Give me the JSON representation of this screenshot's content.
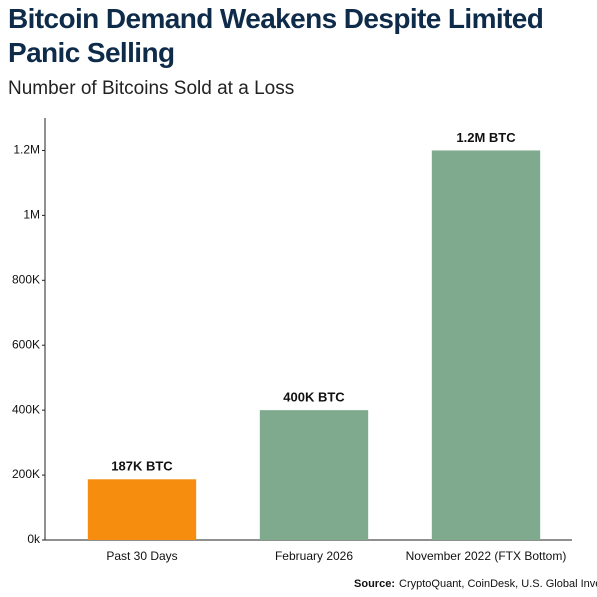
{
  "chart_data": {
    "type": "bar",
    "title": "Bitcoin Demand Weakens Despite Limited Panic Selling",
    "subtitle": "Number of Bitcoins Sold at a Loss",
    "categories": [
      "Past 30 Days",
      "February 2026",
      "November 2022 (FTX Bottom)"
    ],
    "values": [
      187000,
      400000,
      1200000
    ],
    "value_labels": [
      "187K BTC",
      "400K BTC",
      "1.2M BTC"
    ],
    "colors": [
      "#f68d0e",
      "#7faa8e",
      "#7faa8e"
    ],
    "ylim": [
      0,
      1300000
    ],
    "yticks": [
      {
        "value": 0,
        "label": "0k"
      },
      {
        "value": 200000,
        "label": "200K"
      },
      {
        "value": 400000,
        "label": "400K"
      },
      {
        "value": 600000,
        "label": "600K"
      },
      {
        "value": 800000,
        "label": "800K"
      },
      {
        "value": 1000000,
        "label": "1M"
      },
      {
        "value": 1200000,
        "label": "1.2M"
      }
    ],
    "grid": false,
    "source_label": "Source:",
    "source": "CryptoQuant, CoinDesk, U.S. Global Investors"
  }
}
